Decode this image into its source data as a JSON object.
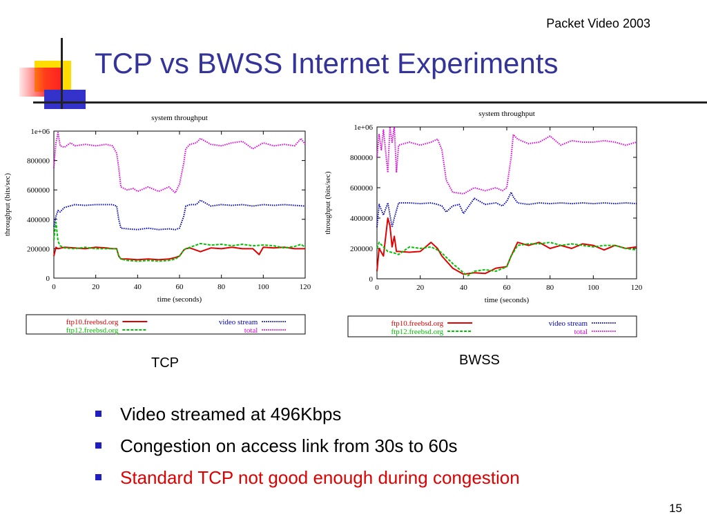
{
  "header_note": "Packet Video 2003",
  "title": "TCP vs BWSS Internet Experiments",
  "colors": {
    "title": "#333399",
    "ftp10": "#e00000",
    "ftp12": "#00c000",
    "video": "#0000c0",
    "total": "#e000e0",
    "bullet_marker": "#1f1fbf",
    "highlight_text": "#e00000"
  },
  "chart_data": [
    {
      "type": "line",
      "title": "system throughput",
      "xlabel": "time (seconds)",
      "ylabel": "throughput (bits/sec)",
      "xlim": [
        0,
        120
      ],
      "ylim": [
        0,
        1000000
      ],
      "xticks": [
        "0",
        "20",
        "40",
        "60",
        "80",
        "100",
        "120"
      ],
      "yticks": [
        "0",
        "200000",
        "400000",
        "600000",
        "800000",
        "1e+06"
      ],
      "legend": "bottom",
      "grid": false,
      "caption": "TCP",
      "series": [
        {
          "name": "ftp10.freebsd.org",
          "color_key": "ftp10",
          "dash": "solid",
          "x": [
            0,
            1,
            2,
            5,
            10,
            15,
            20,
            25,
            28,
            30,
            31,
            32,
            35,
            40,
            45,
            50,
            55,
            58,
            60,
            62,
            63,
            65,
            70,
            75,
            80,
            85,
            90,
            95,
            98,
            100,
            105,
            110,
            115,
            120
          ],
          "y": [
            150000,
            210000,
            200000,
            210000,
            205000,
            200000,
            210000,
            205000,
            200000,
            200000,
            150000,
            130000,
            130000,
            125000,
            130000,
            125000,
            130000,
            140000,
            150000,
            190000,
            200000,
            205000,
            180000,
            205000,
            200000,
            210000,
            200000,
            200000,
            160000,
            210000,
            205000,
            210000,
            200000,
            200000
          ]
        },
        {
          "name": "ftp12.freebsd.org",
          "color_key": "ftp12",
          "dash": "dash",
          "x": [
            0,
            1,
            2,
            3,
            5,
            10,
            15,
            20,
            25,
            28,
            30,
            31,
            32,
            35,
            40,
            45,
            50,
            55,
            58,
            60,
            62,
            63,
            65,
            70,
            75,
            80,
            85,
            90,
            95,
            100,
            105,
            110,
            115,
            118,
            120
          ],
          "y": [
            260000,
            380000,
            250000,
            220000,
            205000,
            200000,
            210000,
            200000,
            200000,
            200000,
            200000,
            150000,
            130000,
            120000,
            115000,
            120000,
            115000,
            120000,
            130000,
            150000,
            190000,
            200000,
            210000,
            235000,
            225000,
            230000,
            220000,
            230000,
            220000,
            225000,
            220000,
            205000,
            215000,
            230000,
            210000
          ]
        },
        {
          "name": "video stream",
          "color_key": "video",
          "dash": "dot",
          "x": [
            0,
            1,
            2,
            3,
            5,
            10,
            15,
            20,
            25,
            28,
            30,
            31,
            32,
            35,
            40,
            45,
            50,
            55,
            58,
            60,
            62,
            63,
            65,
            68,
            70,
            75,
            80,
            85,
            90,
            95,
            100,
            105,
            110,
            115,
            120
          ],
          "y": [
            350000,
            420000,
            460000,
            450000,
            480000,
            500000,
            495000,
            500000,
            500000,
            500000,
            490000,
            400000,
            340000,
            335000,
            330000,
            340000,
            330000,
            335000,
            330000,
            340000,
            420000,
            490000,
            500000,
            500000,
            530000,
            490000,
            500000,
            495000,
            500000,
            490000,
            500000,
            495000,
            500000,
            495000,
            490000
          ]
        },
        {
          "name": "total",
          "color_key": "total",
          "dash": "dot",
          "x": [
            0,
            1,
            2,
            3,
            5,
            8,
            10,
            15,
            20,
            25,
            28,
            30,
            31,
            32,
            35,
            38,
            40,
            45,
            50,
            55,
            58,
            60,
            62,
            63,
            65,
            68,
            70,
            75,
            80,
            85,
            90,
            95,
            100,
            105,
            110,
            115,
            118,
            120
          ],
          "y": [
            750000,
            920000,
            990000,
            900000,
            890000,
            920000,
            900000,
            910000,
            900000,
            910000,
            900000,
            850000,
            750000,
            620000,
            600000,
            610000,
            590000,
            620000,
            590000,
            620000,
            580000,
            640000,
            780000,
            880000,
            910000,
            920000,
            950000,
            910000,
            900000,
            920000,
            930000,
            880000,
            920000,
            900000,
            910000,
            900000,
            950000,
            910000
          ]
        }
      ]
    },
    {
      "type": "line",
      "title": "system throughput",
      "xlabel": "time (seconds)",
      "ylabel": "throughput (bits/sec)",
      "xlim": [
        0,
        120
      ],
      "ylim": [
        0,
        1000000
      ],
      "xticks": [
        "0",
        "20",
        "40",
        "60",
        "80",
        "100",
        "120"
      ],
      "yticks": [
        "0",
        "200000",
        "400000",
        "600000",
        "800000",
        "1e+06"
      ],
      "legend": "bottom",
      "grid": false,
      "caption": "BWSS",
      "series": [
        {
          "name": "ftp10.freebsd.org",
          "color_key": "ftp10",
          "dash": "solid",
          "x": [
            0,
            1,
            3,
            5,
            6,
            7,
            8,
            9,
            10,
            15,
            20,
            25,
            28,
            30,
            35,
            40,
            45,
            50,
            55,
            60,
            62,
            65,
            70,
            75,
            80,
            85,
            90,
            95,
            100,
            105,
            110,
            115,
            120
          ],
          "y": [
            50000,
            200000,
            150000,
            400000,
            350000,
            210000,
            280000,
            180000,
            180000,
            175000,
            180000,
            240000,
            200000,
            150000,
            70000,
            30000,
            40000,
            35000,
            70000,
            80000,
            150000,
            240000,
            220000,
            240000,
            200000,
            220000,
            200000,
            230000,
            220000,
            190000,
            220000,
            200000,
            210000
          ]
        },
        {
          "name": "ftp12.freebsd.org",
          "color_key": "ftp12",
          "dash": "dash",
          "x": [
            0,
            1,
            3,
            5,
            8,
            10,
            15,
            20,
            25,
            28,
            30,
            35,
            40,
            42,
            45,
            50,
            55,
            60,
            62,
            65,
            70,
            75,
            80,
            85,
            90,
            95,
            100,
            105,
            110,
            115,
            120
          ],
          "y": [
            200000,
            240000,
            210000,
            180000,
            170000,
            160000,
            210000,
            200000,
            210000,
            190000,
            170000,
            100000,
            40000,
            20000,
            50000,
            60000,
            50000,
            80000,
            150000,
            220000,
            230000,
            230000,
            240000,
            220000,
            230000,
            220000,
            210000,
            220000,
            220000,
            200000,
            190000
          ]
        },
        {
          "name": "video stream",
          "color_key": "video",
          "dash": "dot",
          "x": [
            0,
            1,
            3,
            5,
            7,
            8,
            10,
            15,
            20,
            25,
            28,
            30,
            32,
            35,
            38,
            40,
            45,
            50,
            55,
            58,
            60,
            62,
            63,
            65,
            70,
            75,
            80,
            85,
            90,
            95,
            100,
            105,
            110,
            115,
            120
          ],
          "y": [
            340000,
            490000,
            420000,
            500000,
            340000,
            400000,
            500000,
            500000,
            495000,
            500000,
            490000,
            480000,
            440000,
            480000,
            490000,
            430000,
            530000,
            490000,
            500000,
            480000,
            510000,
            570000,
            540000,
            500000,
            490000,
            500000,
            495000,
            500000,
            495000,
            500000,
            495000,
            500000,
            495000,
            500000,
            495000
          ]
        },
        {
          "name": "total",
          "color_key": "total",
          "dash": "dot",
          "x": [
            0,
            1,
            2,
            3,
            5,
            6,
            7,
            8,
            9,
            10,
            15,
            20,
            25,
            28,
            30,
            32,
            35,
            40,
            45,
            50,
            55,
            58,
            60,
            62,
            63,
            65,
            70,
            75,
            80,
            85,
            90,
            95,
            100,
            105,
            110,
            115,
            120
          ],
          "y": [
            800000,
            950000,
            850000,
            980000,
            700000,
            1000000,
            900000,
            1000000,
            700000,
            880000,
            900000,
            880000,
            900000,
            920000,
            850000,
            650000,
            570000,
            560000,
            600000,
            580000,
            600000,
            580000,
            600000,
            800000,
            950000,
            920000,
            890000,
            900000,
            940000,
            880000,
            910000,
            900000,
            900000,
            910000,
            900000,
            880000,
            900000
          ]
        }
      ]
    }
  ],
  "bullets": [
    {
      "text": "Video streamed at 496Kbps",
      "highlight": false
    },
    {
      "text": "Congestion on access link from 30s to 60s",
      "highlight": false
    },
    {
      "text": "Standard TCP not good enough during congestion",
      "highlight": true
    }
  ],
  "page_number": "15"
}
